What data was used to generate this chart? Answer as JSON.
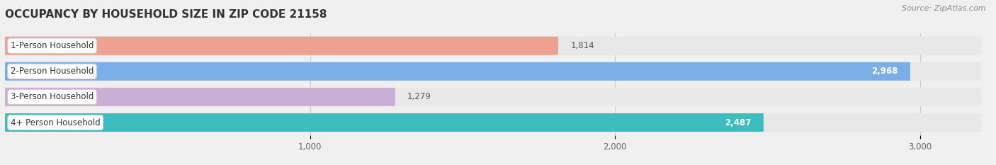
{
  "title": "OCCUPANCY BY HOUSEHOLD SIZE IN ZIP CODE 21158",
  "source": "Source: ZipAtlas.com",
  "categories": [
    "1-Person Household",
    "2-Person Household",
    "3-Person Household",
    "4+ Person Household"
  ],
  "values": [
    1814,
    2968,
    1279,
    2487
  ],
  "bar_colors": [
    "#f0a090",
    "#7aaee8",
    "#c9aed6",
    "#3dbdbe"
  ],
  "background_color": "#f0f0f0",
  "bar_bg_color": "#e8e8e8",
  "xlim_max": 3200,
  "xticks": [
    1000,
    2000,
    3000
  ],
  "xtick_labels": [
    "1,000",
    "2,000",
    "3,000"
  ],
  "title_fontsize": 11,
  "bar_height": 0.72,
  "value_labels": [
    "1,814",
    "2,968",
    "1,279",
    "2,487"
  ],
  "label_fontsize": 8.5,
  "value_fontsize": 8.5,
  "source_fontsize": 8
}
